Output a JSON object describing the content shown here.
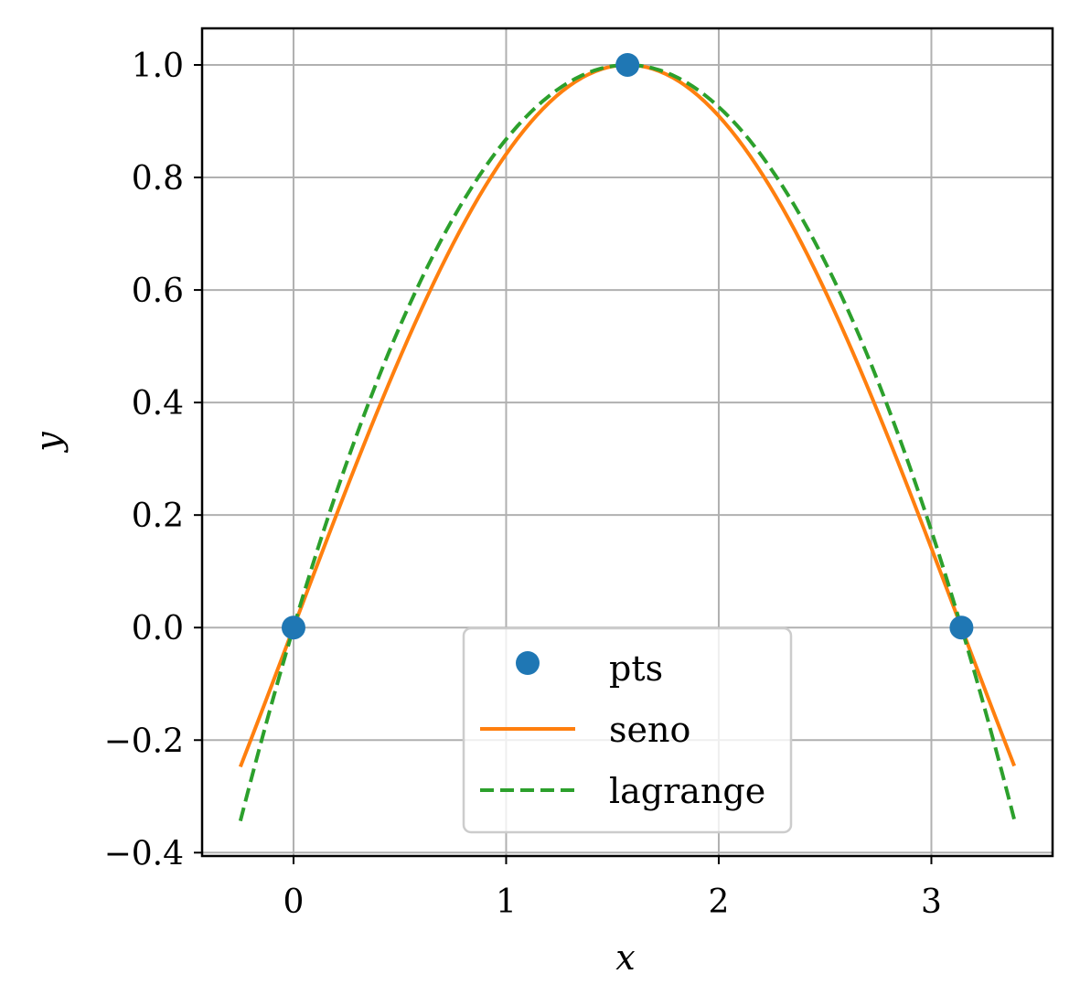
{
  "chart_data": {
    "type": "line",
    "title": "",
    "xlabel": "x",
    "ylabel": "y",
    "xlim": [
      -0.43,
      3.57
    ],
    "ylim": [
      -0.406,
      1.065
    ],
    "xticks": [
      0,
      1,
      2,
      3
    ],
    "yticks": [
      -0.4,
      -0.2,
      0.0,
      0.2,
      0.4,
      0.6,
      0.8,
      1.0
    ],
    "xtick_labels": [
      "0",
      "1",
      "2",
      "3"
    ],
    "ytick_labels": [
      "−0.4",
      "−0.2",
      "0.0",
      "0.2",
      "0.4",
      "0.6",
      "0.8",
      "1.0"
    ],
    "grid": true,
    "legend_position": "lower center",
    "series": [
      {
        "name": "pts",
        "kind": "scatter",
        "color": "#1f77b4",
        "x": [
          0.0,
          1.5708,
          3.1416
        ],
        "y": [
          0.0,
          1.0,
          0.0
        ]
      },
      {
        "name": "seno",
        "kind": "line",
        "style": "solid",
        "color": "#ff7f0e",
        "x": [
          -0.25,
          0.0,
          0.25,
          0.5,
          0.75,
          1.0,
          1.25,
          1.5,
          1.5708,
          1.75,
          2.0,
          2.25,
          2.5,
          2.75,
          3.0,
          3.1416,
          3.39
        ],
        "y": [
          -0.247,
          0.0,
          0.247,
          0.479,
          0.682,
          0.841,
          0.949,
          0.997,
          1.0,
          0.984,
          0.909,
          0.778,
          0.598,
          0.382,
          0.141,
          0.0,
          -0.246
        ]
      },
      {
        "name": "lagrange",
        "kind": "line",
        "style": "dashed",
        "color": "#2ca02c",
        "x": [
          -0.25,
          0.0,
          0.25,
          0.5,
          0.75,
          1.0,
          1.25,
          1.5,
          1.5708,
          1.75,
          2.0,
          2.25,
          2.5,
          2.75,
          3.0,
          3.1416,
          3.39
        ],
        "y": [
          -0.343,
          0.0,
          0.293,
          0.535,
          0.727,
          0.868,
          0.958,
          0.998,
          1.0,
          0.987,
          0.925,
          0.813,
          0.65,
          0.437,
          0.173,
          0.0,
          -0.342
        ]
      }
    ]
  }
}
